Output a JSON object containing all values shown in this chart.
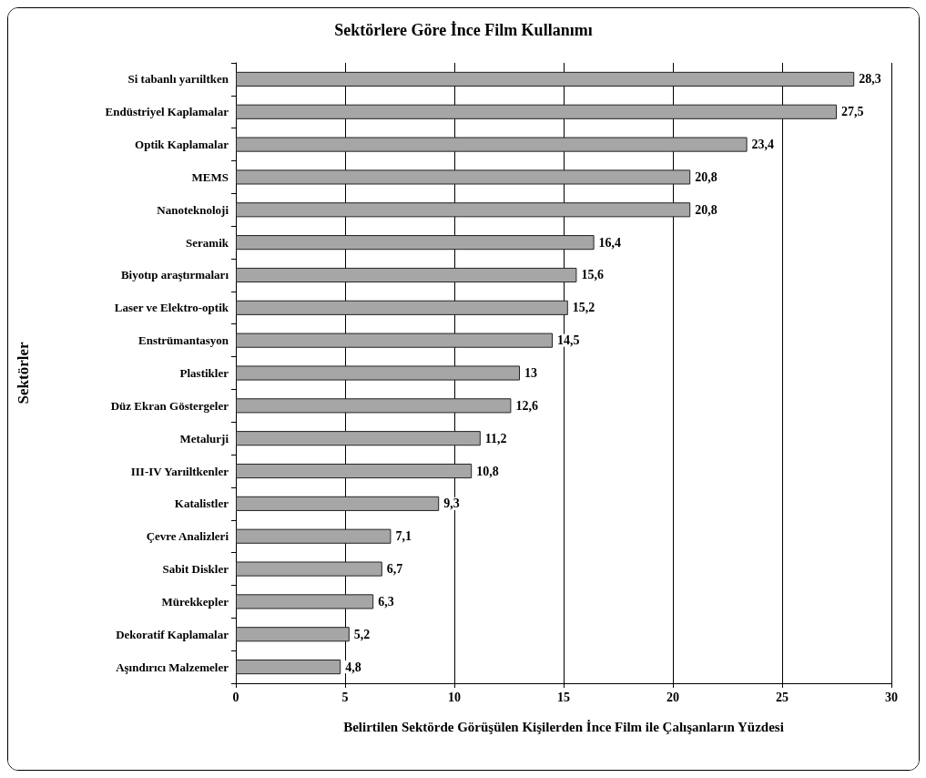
{
  "chart_data": {
    "type": "bar",
    "orientation": "horizontal",
    "title": "Sektörlere Göre İnce Film Kullanımı",
    "xlabel": "Belirtilen Sektörde Görüşülen Kişilerden İnce Film ile Çalışanların Yüzdesi",
    "ylabel": "Sektörler",
    "categories": [
      "Si tabanlı yarıiltken",
      "Endüstriyel Kaplamalar",
      "Optik Kaplamalar",
      "MEMS",
      "Nanoteknoloji",
      "Seramik",
      "Biyotıp araştırmaları",
      "Laser ve Elektro-optik",
      "Enstrümantasyon",
      "Plastikler",
      "Düz Ekran Göstergeler",
      "Metalurji",
      "III-IV Yarıiltkenler",
      "Katalistler",
      "Çevre Analizleri",
      "Sabit Diskler",
      "Mürekkepler",
      "Dekoratif Kaplamalar",
      "Aşındırıcı Malzemeler"
    ],
    "values": [
      28.3,
      27.5,
      23.4,
      20.8,
      20.8,
      16.4,
      15.6,
      15.2,
      14.5,
      13,
      12.6,
      11.2,
      10.8,
      9.3,
      7.1,
      6.7,
      6.3,
      5.2,
      4.8
    ],
    "value_labels": [
      "28,3",
      "27,5",
      "23,4",
      "20,8",
      "20,8",
      "16,4",
      "15,6",
      "15,2",
      "14,5",
      "13",
      "12,6",
      "11,2",
      "10,8",
      "9,3",
      "7,1",
      "6,7",
      "6,3",
      "5,2",
      "4,8"
    ],
    "color": "#a6a6a6",
    "xlim": [
      0,
      30
    ],
    "xticks": [
      0,
      5,
      10,
      15,
      20,
      25,
      30
    ],
    "grid": "x"
  }
}
